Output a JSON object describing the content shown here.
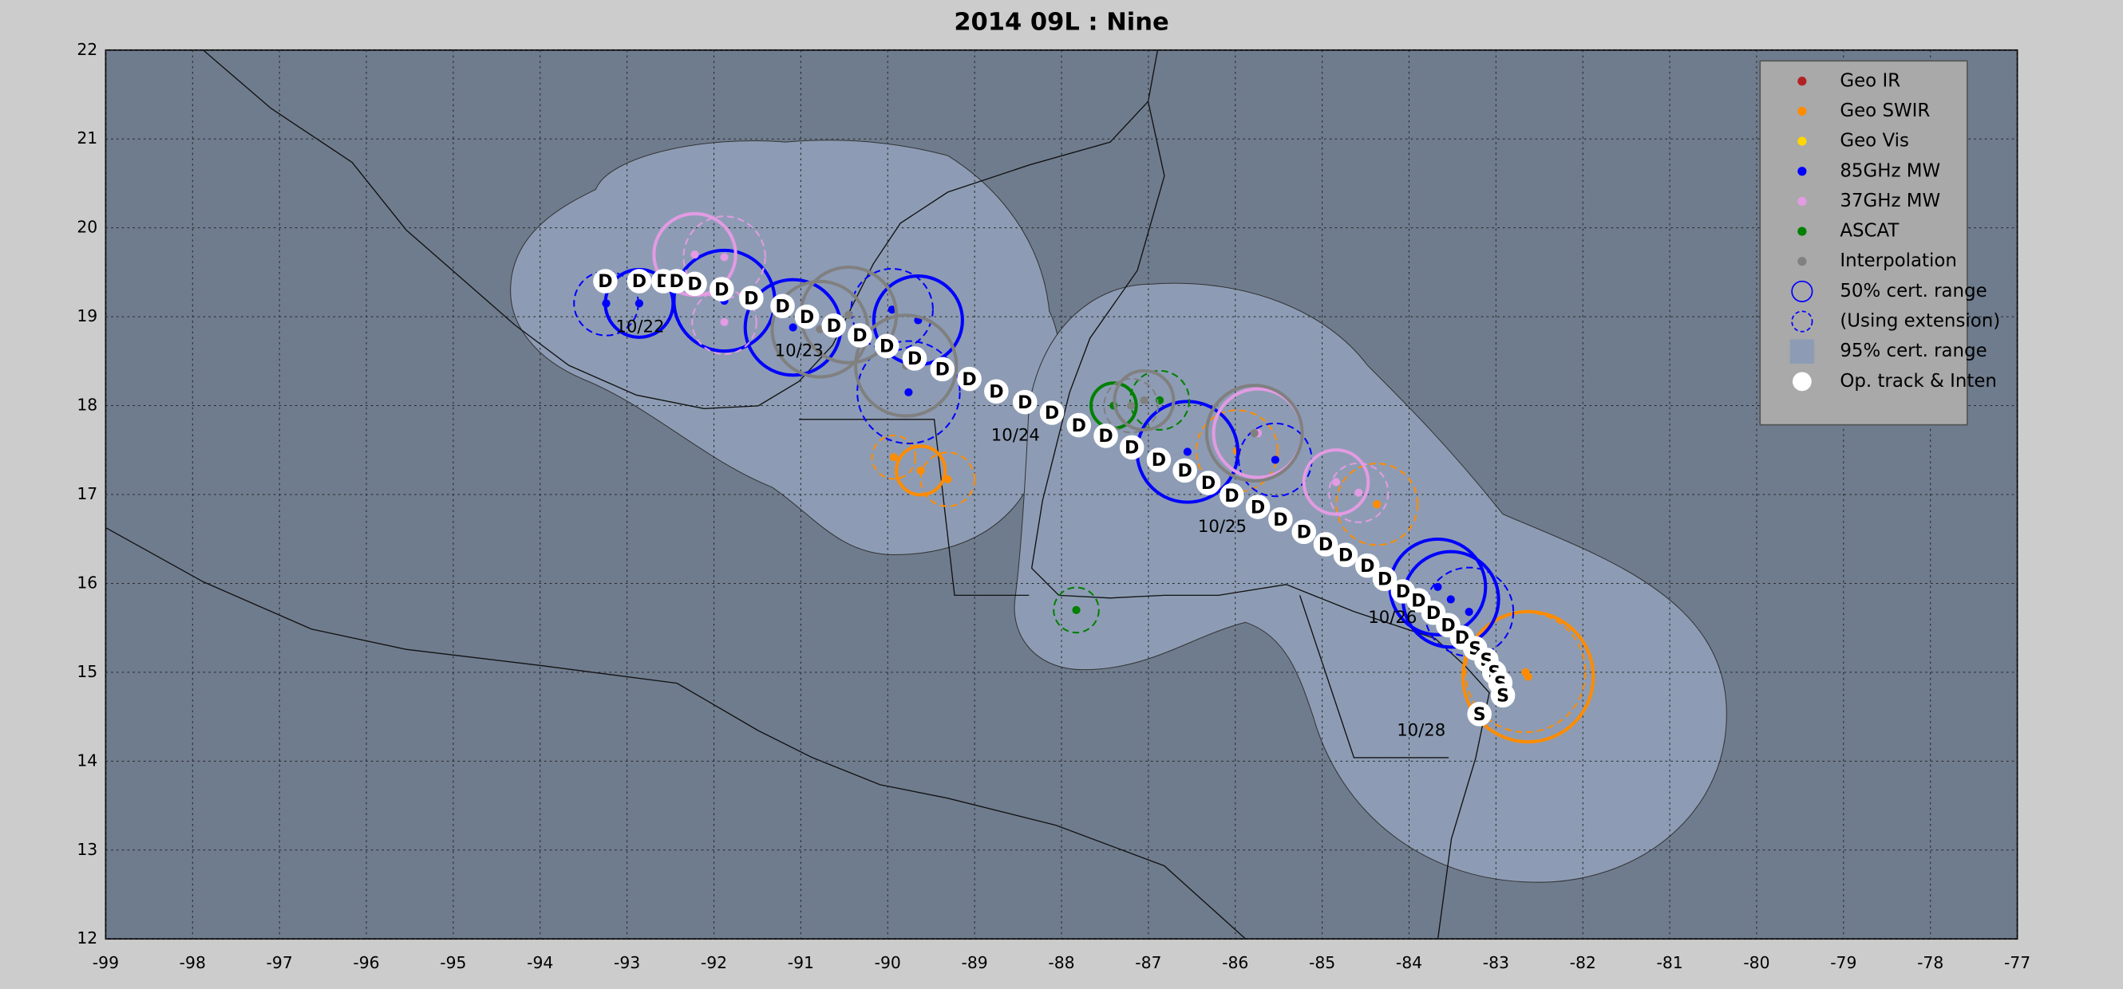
{
  "chart_data": {
    "type": "map",
    "title": "2014  09L :  Nine",
    "xlim": [
      -99,
      -77
    ],
    "ylim": [
      12,
      22
    ],
    "xticks": [
      -99,
      -98,
      -97,
      -96,
      -95,
      -94,
      -93,
      -92,
      -91,
      -90,
      -89,
      -88,
      -87,
      -86,
      -85,
      -84,
      -83,
      -82,
      -81,
      -80,
      -79,
      -78,
      -77
    ],
    "yticks": [
      12,
      13,
      14,
      15,
      16,
      17,
      18,
      19,
      20,
      21,
      22
    ],
    "grid": true,
    "legend_position": "upper right",
    "series": [
      {
        "name": "Geo IR",
        "color": "#b22222",
        "x": [],
        "y": [],
        "r": [],
        "dashed": []
      },
      {
        "name": "Geo SWIR",
        "color": "#ff8c00",
        "x": [
          -89.62,
          -89.93,
          -89.31,
          -85.98,
          -84.37,
          -82.63,
          -82.66
        ],
        "y": [
          17.27,
          17.42,
          17.17,
          17.49,
          16.89,
          14.95,
          15.0
        ],
        "r": [
          0.28,
          0.25,
          0.31,
          0.47,
          0.47,
          0.75,
          0.69
        ],
        "dashed": [
          false,
          true,
          true,
          true,
          true,
          false,
          true
        ]
      },
      {
        "name": "Geo Vis",
        "color": "#ffd700",
        "x": [],
        "y": [],
        "r": [],
        "dashed": []
      },
      {
        "name": "85GHz MW",
        "color": "#0000ff",
        "x": [
          -92.86,
          -93.24,
          -91.88,
          -91.09,
          -89.65,
          -89.95,
          -89.76,
          -86.55,
          -85.54,
          -83.67,
          -83.52,
          -83.31
        ],
        "y": [
          19.15,
          19.15,
          19.18,
          18.88,
          18.96,
          19.08,
          18.15,
          17.48,
          17.39,
          15.96,
          15.82,
          15.68
        ],
        "r": [
          0.39,
          0.37,
          0.58,
          0.55,
          0.51,
          0.47,
          0.59,
          0.58,
          0.42,
          0.55,
          0.55,
          0.51
        ],
        "dashed": [
          false,
          true,
          false,
          false,
          false,
          true,
          true,
          false,
          true,
          false,
          false,
          true
        ]
      },
      {
        "name": "37GHz MW",
        "color": "#e39be3",
        "x": [
          -92.22,
          -91.88,
          -91.88,
          -85.74,
          -84.84,
          -84.58
        ],
        "y": [
          19.7,
          19.67,
          18.94,
          17.69,
          17.14,
          17.02
        ],
        "r": [
          0.47,
          0.47,
          0.37,
          0.51,
          0.37,
          0.34
        ],
        "dashed": [
          false,
          true,
          true,
          false,
          false,
          true
        ]
      },
      {
        "name": "ASCAT",
        "color": "#008000",
        "x": [
          -87.4,
          -86.87,
          -87.83
        ],
        "y": [
          18.0,
          18.06,
          15.7
        ],
        "r": [
          0.26,
          0.34,
          0.26
        ],
        "dashed": [
          false,
          true,
          true
        ]
      },
      {
        "name": "Interpolation",
        "color": "#808080",
        "x": [
          -90.45,
          -90.78,
          -89.79,
          -87.05,
          -87.2,
          -85.78
        ],
        "y": [
          19.02,
          18.86,
          18.45,
          18.06,
          18.0,
          17.69
        ],
        "r": [
          0.55,
          0.55,
          0.58,
          0.34,
          0.31,
          0.55
        ],
        "dashed": [
          false,
          false,
          false,
          false,
          true,
          false
        ]
      }
    ],
    "range_legend": [
      "50% cert. range",
      "(Using extension)",
      "95% cert. range"
    ],
    "track": {
      "name": "Op. track & Inten",
      "x": [
        -93.25,
        -92.86,
        -92.58,
        -92.43,
        -92.22,
        -91.91,
        -91.57,
        -91.21,
        -90.93,
        -90.62,
        -90.32,
        -90.01,
        -89.69,
        -89.37,
        -89.06,
        -88.75,
        -88.42,
        -88.11,
        -87.8,
        -87.49,
        -87.19,
        -86.88,
        -86.58,
        -86.31,
        -86.04,
        -85.74,
        -85.48,
        -85.21,
        -84.96,
        -84.73,
        -84.48,
        -84.28,
        -84.07,
        -83.89,
        -83.72,
        -83.55,
        -83.39,
        -83.24,
        -83.11,
        -83.02,
        -82.95,
        -82.92,
        -83.19
      ],
      "y": [
        19.4,
        19.4,
        19.4,
        19.4,
        19.37,
        19.31,
        19.21,
        19.12,
        19.0,
        18.9,
        18.79,
        18.67,
        18.53,
        18.41,
        18.3,
        18.16,
        18.04,
        17.92,
        17.78,
        17.66,
        17.53,
        17.39,
        17.27,
        17.13,
        16.99,
        16.86,
        16.72,
        16.58,
        16.44,
        16.32,
        16.2,
        16.05,
        15.91,
        15.81,
        15.67,
        15.53,
        15.39,
        15.27,
        15.14,
        15.0,
        14.88,
        14.74,
        14.53
      ],
      "labels": [
        "D",
        "D",
        "D",
        "D",
        "D",
        "D",
        "D",
        "D",
        "D",
        "D",
        "D",
        "D",
        "D",
        "D",
        "D",
        "D",
        "D",
        "D",
        "D",
        "D",
        "D",
        "D",
        "D",
        "D",
        "D",
        "D",
        "D",
        "D",
        "D",
        "D",
        "D",
        "D",
        "D",
        "D",
        "D",
        "D",
        "D",
        "S",
        "S",
        "S",
        "S",
        "S",
        "S"
      ]
    },
    "date_labels": {
      "text": [
        "10/22",
        "10/23",
        "10/24",
        "10/25",
        "10/26",
        "10/28"
      ],
      "x": [
        -92.85,
        -91.02,
        -88.53,
        -86.15,
        -84.19,
        -83.86
      ],
      "y": [
        18.88,
        18.61,
        17.66,
        16.63,
        15.61,
        14.34
      ]
    }
  }
}
